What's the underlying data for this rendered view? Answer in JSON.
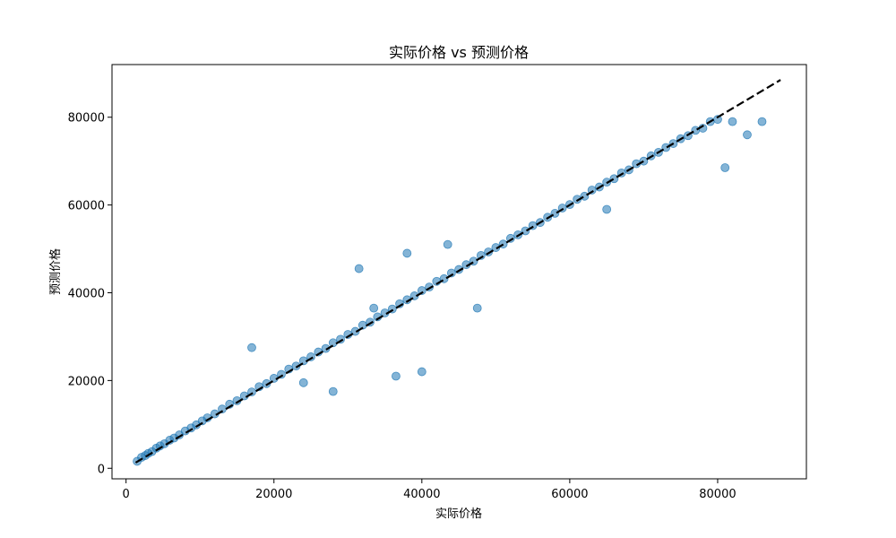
{
  "chart_data": {
    "type": "scatter",
    "title": "实际价格 vs 预测价格",
    "xlabel": "实际价格",
    "ylabel": "预测价格",
    "xlim": [
      -1900,
      92000
    ],
    "ylim": [
      -2400,
      92000
    ],
    "xticks": [
      0,
      20000,
      40000,
      60000,
      80000
    ],
    "yticks": [
      0,
      20000,
      40000,
      60000,
      80000
    ],
    "x_tick_labels": [
      "0",
      "20000",
      "40000",
      "60000",
      "80000"
    ],
    "y_tick_labels": [
      "0",
      "20000",
      "40000",
      "60000",
      "80000"
    ],
    "grid": false,
    "legend": "none",
    "marker_color": "#1f77b4",
    "marker_alpha": 0.55,
    "reference_line": {
      "style": "dashed",
      "color": "#000000",
      "x": [
        1300,
        88500
      ],
      "y": [
        1300,
        88500
      ]
    },
    "series": [
      {
        "x": [
          1500,
          2100,
          2600,
          3000,
          3500,
          4100,
          4600,
          5200,
          5900,
          6500,
          7200,
          8000,
          8800,
          9500,
          10300,
          11000,
          12000,
          13000,
          14000,
          15000,
          16000,
          17000,
          18000,
          19000,
          20000,
          21000,
          22000,
          23000,
          24000,
          25000,
          26000,
          27000,
          28000,
          29000,
          30000,
          31000,
          32000,
          33000,
          34000,
          35000,
          36000,
          37000,
          38000,
          39000,
          40000,
          41000,
          42000,
          43000,
          44000,
          45000,
          46000,
          47000,
          48000,
          49000,
          50000,
          51000,
          52000,
          53000,
          54000,
          55000,
          56000,
          57000,
          58000,
          59000,
          60000,
          61000,
          62000,
          63000,
          64000,
          65000,
          66000,
          67000,
          68000,
          69000,
          70000,
          71000,
          72000,
          73000,
          74000,
          75000,
          76000,
          77000,
          78000,
          79000,
          80000,
          81000,
          82000,
          84000,
          86000,
          31500,
          38000,
          36500,
          40000,
          24000,
          28000,
          33500,
          47500,
          43500,
          17000,
          65000
        ],
        "y": [
          1600,
          2500,
          2900,
          3400,
          3800,
          4600,
          5100,
          5600,
          6400,
          6900,
          7600,
          8500,
          9200,
          9900,
          10800,
          11500,
          12400,
          13500,
          14600,
          15400,
          16500,
          17400,
          18600,
          19300,
          20500,
          21400,
          22600,
          23300,
          24500,
          25400,
          26500,
          27300,
          28600,
          29400,
          30500,
          31200,
          32600,
          33300,
          34500,
          35400,
          36300,
          37500,
          38400,
          39300,
          40500,
          41300,
          42600,
          43200,
          44500,
          45300,
          46400,
          47200,
          48500,
          49300,
          50300,
          51100,
          52400,
          53200,
          54100,
          55300,
          56000,
          57200,
          58100,
          59300,
          60100,
          61300,
          62000,
          63400,
          64100,
          65200,
          66000,
          67300,
          68000,
          69400,
          70000,
          71200,
          72000,
          73100,
          74000,
          75100,
          75800,
          77000,
          77500,
          79000,
          79500,
          68500,
          79000,
          76000,
          79000,
          45500,
          49000,
          21000,
          22000,
          19500,
          17500,
          36500,
          36500,
          51000,
          27500,
          59000
        ]
      }
    ]
  }
}
